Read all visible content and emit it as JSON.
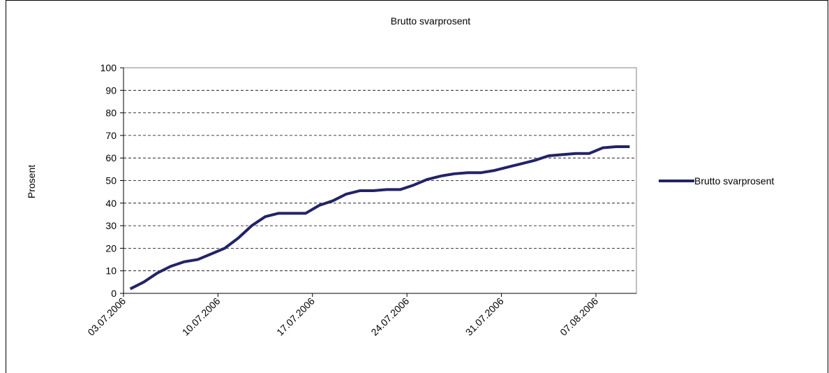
{
  "chart_data": {
    "type": "line",
    "title": "Brutto svarprosent",
    "y_label": "Prosent",
    "categories": [
      "03.07.2006",
      null,
      null,
      null,
      null,
      null,
      null,
      "10.07.2006",
      null,
      null,
      null,
      null,
      null,
      null,
      "17.07.2006",
      null,
      null,
      null,
      null,
      null,
      null,
      "24.07.2006",
      null,
      null,
      null,
      null,
      null,
      null,
      "31.07.2006",
      null,
      null,
      null,
      null,
      null,
      null,
      "07.08.2006",
      null,
      null
    ],
    "series": [
      {
        "name": "Brutto svarprosent",
        "color": "#232369",
        "values": [
          2,
          5,
          9,
          12,
          14,
          15,
          17.5,
          20,
          24.5,
          30,
          34,
          35.5,
          35.5,
          35.5,
          39,
          41,
          44,
          45.5,
          45.5,
          46,
          46,
          48,
          50.5,
          52,
          53,
          53.5,
          53.5,
          54.5,
          56,
          57.5,
          59,
          61,
          61.5,
          62,
          62,
          64.5,
          65,
          65
        ]
      }
    ],
    "ylim": [
      0,
      100
    ],
    "yticks": [
      0,
      10,
      20,
      30,
      40,
      50,
      60,
      70,
      80,
      90,
      100
    ],
    "grid": true,
    "legend": "right"
  }
}
